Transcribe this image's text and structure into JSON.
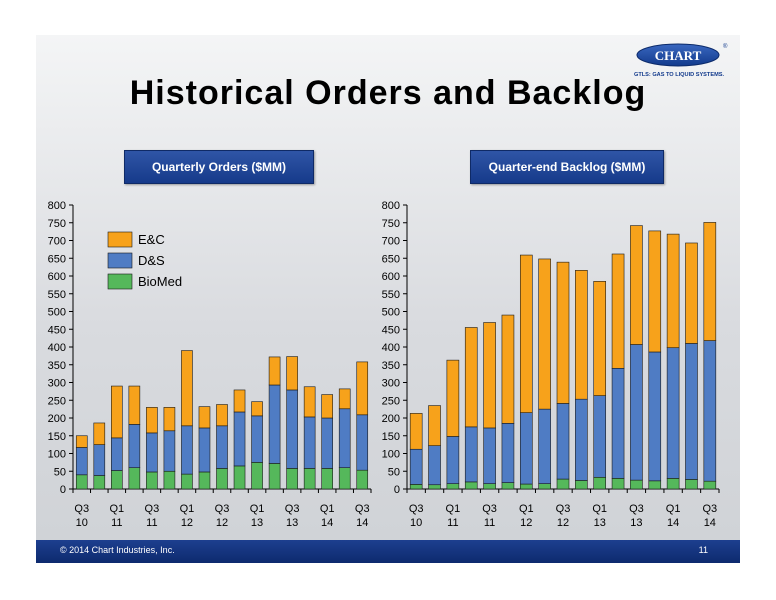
{
  "slide": {
    "title": "Historical Orders and Backlog",
    "footer_copyright": "© 2014 Chart Industries, Inc.",
    "page_number": "11"
  },
  "logo": {
    "name": "CHART",
    "registered": "®",
    "tagline": "GTLS: GAS TO LIQUID SYSTEMS."
  },
  "colors": {
    "ec": "#f7a21b",
    "ds": "#4f7cc4",
    "biomed": "#55b85b",
    "header_blue": "#1c3f8f"
  },
  "chart_data": [
    {
      "id": "orders",
      "type": "bar",
      "stacked": true,
      "title": "Quarterly Orders ($MM)",
      "ylim": [
        0,
        800
      ],
      "yticks": [
        0,
        50,
        100,
        150,
        200,
        250,
        300,
        350,
        400,
        450,
        500,
        550,
        600,
        650,
        700,
        750,
        800
      ],
      "grid": false,
      "legend": {
        "position": "top-left"
      },
      "categories": [
        "Q3 10",
        "Q4 10",
        "Q1 11",
        "Q2 11",
        "Q3 11",
        "Q4 11",
        "Q1 12",
        "Q2 12",
        "Q3 12",
        "Q4 12",
        "Q1 13",
        "Q2 13",
        "Q3 13",
        "Q4 13",
        "Q1 14",
        "Q2 14",
        "Q3 14"
      ],
      "tick_labels": [
        {
          "index": 0,
          "line1": "Q3",
          "line2": "10"
        },
        {
          "index": 2,
          "line1": "Q1",
          "line2": "11"
        },
        {
          "index": 4,
          "line1": "Q3",
          "line2": "11"
        },
        {
          "index": 6,
          "line1": "Q1",
          "line2": "12"
        },
        {
          "index": 8,
          "line1": "Q3",
          "line2": "12"
        },
        {
          "index": 10,
          "line1": "Q1",
          "line2": "13"
        },
        {
          "index": 12,
          "line1": "Q3",
          "line2": "13"
        },
        {
          "index": 14,
          "line1": "Q1",
          "line2": "14"
        },
        {
          "index": 16,
          "line1": "Q3",
          "line2": "14"
        }
      ],
      "series": [
        {
          "name": "BioMed",
          "color": "#55b85b",
          "values": [
            40,
            38,
            52,
            60,
            48,
            50,
            42,
            48,
            58,
            65,
            75,
            72,
            58,
            58,
            58,
            60,
            53
          ]
        },
        {
          "name": "D&S",
          "color": "#4f7cc4",
          "values": [
            77,
            87,
            92,
            122,
            110,
            114,
            136,
            124,
            120,
            152,
            131,
            221,
            221,
            145,
            142,
            166,
            156
          ]
        },
        {
          "name": "E&C",
          "color": "#f7a21b",
          "values": [
            33,
            61,
            146,
            108,
            72,
            66,
            212,
            60,
            60,
            62,
            40,
            79,
            94,
            85,
            66,
            56,
            149
          ]
        }
      ]
    },
    {
      "id": "backlog",
      "type": "bar",
      "stacked": true,
      "title": "Quarter-end Backlog ($MM)",
      "ylim": [
        0,
        800
      ],
      "yticks": [
        0,
        50,
        100,
        150,
        200,
        250,
        300,
        350,
        400,
        450,
        500,
        550,
        600,
        650,
        700,
        750,
        800
      ],
      "grid": false,
      "categories": [
        "Q3 10",
        "Q4 10",
        "Q1 11",
        "Q2 11",
        "Q3 11",
        "Q4 11",
        "Q1 12",
        "Q2 12",
        "Q3 12",
        "Q4 12",
        "Q1 13",
        "Q2 13",
        "Q3 13",
        "Q4 13",
        "Q1 14",
        "Q2 14",
        "Q3 14"
      ],
      "tick_labels": [
        {
          "index": 0,
          "line1": "Q3",
          "line2": "10"
        },
        {
          "index": 2,
          "line1": "Q1",
          "line2": "11"
        },
        {
          "index": 4,
          "line1": "Q3",
          "line2": "11"
        },
        {
          "index": 6,
          "line1": "Q1",
          "line2": "12"
        },
        {
          "index": 8,
          "line1": "Q3",
          "line2": "12"
        },
        {
          "index": 10,
          "line1": "Q1",
          "line2": "13"
        },
        {
          "index": 12,
          "line1": "Q3",
          "line2": "13"
        },
        {
          "index": 14,
          "line1": "Q1",
          "line2": "14"
        },
        {
          "index": 16,
          "line1": "Q3",
          "line2": "14"
        }
      ],
      "series": [
        {
          "name": "BioMed",
          "color": "#55b85b",
          "values": [
            13,
            12,
            15,
            20,
            15,
            18,
            14,
            15,
            28,
            24,
            33,
            30,
            25,
            23,
            30,
            27,
            22
          ]
        },
        {
          "name": "D&S",
          "color": "#4f7cc4",
          "values": [
            99,
            110,
            133,
            155,
            157,
            167,
            201,
            210,
            213,
            229,
            230,
            310,
            382,
            363,
            368,
            383,
            396
          ]
        },
        {
          "name": "E&C",
          "color": "#f7a21b",
          "values": [
            101,
            113,
            215,
            280,
            297,
            305,
            444,
            423,
            398,
            363,
            322,
            322,
            335,
            341,
            320,
            283,
            333
          ]
        }
      ]
    }
  ]
}
